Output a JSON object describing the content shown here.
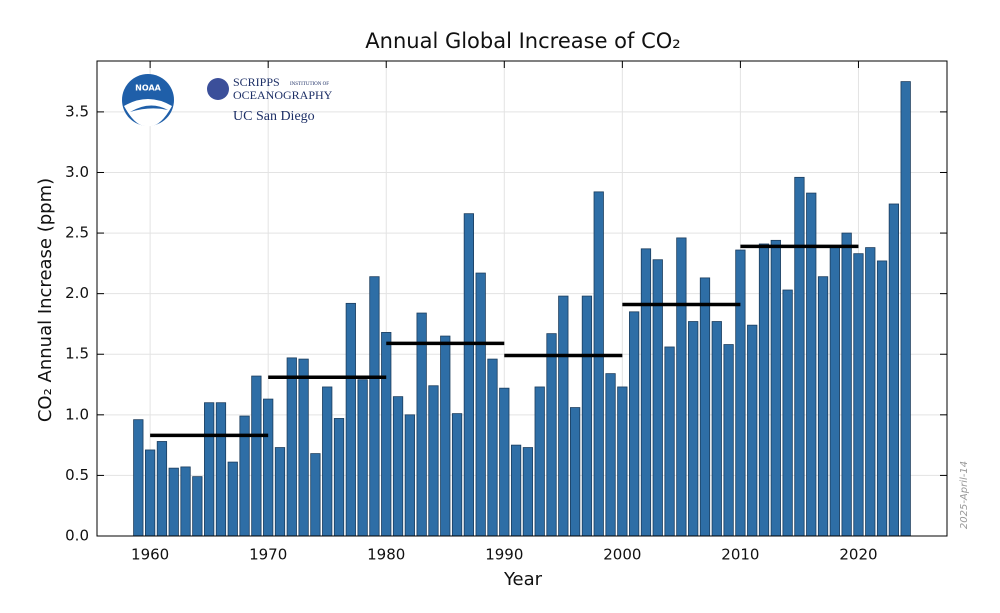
{
  "chart_data": {
    "type": "bar",
    "title": "Annual Global Increase of CO₂",
    "x_label": "Year",
    "y_label": "CO₂ Annual Increase (ppm)",
    "date_stamp": "2025-April-14",
    "logos": {
      "noaa": "NOAA",
      "scripps": "SCRIPPS",
      "scripps_sub": "INSTITUTION OF",
      "oceanography": "OCEANOGRAPHY",
      "ucsd": "UC San Diego"
    },
    "color": "#2e6ea6",
    "x": [
      1959,
      1960,
      1961,
      1962,
      1963,
      1964,
      1965,
      1966,
      1967,
      1968,
      1969,
      1970,
      1971,
      1972,
      1973,
      1974,
      1975,
      1976,
      1977,
      1978,
      1979,
      1980,
      1981,
      1982,
      1983,
      1984,
      1985,
      1986,
      1987,
      1988,
      1989,
      1990,
      1991,
      1992,
      1993,
      1994,
      1995,
      1996,
      1997,
      1998,
      1999,
      2000,
      2001,
      2002,
      2003,
      2004,
      2005,
      2006,
      2007,
      2008,
      2009,
      2010,
      2011,
      2012,
      2013,
      2014,
      2015,
      2016,
      2017,
      2018,
      2019,
      2020,
      2021,
      2022,
      2023,
      2024
    ],
    "values": [
      0.96,
      0.71,
      0.78,
      0.56,
      0.57,
      0.49,
      1.1,
      1.1,
      0.61,
      0.99,
      1.32,
      1.13,
      0.73,
      1.47,
      1.46,
      0.68,
      1.23,
      0.97,
      1.92,
      1.29,
      2.14,
      1.68,
      1.15,
      1.0,
      1.84,
      1.24,
      1.65,
      1.01,
      2.66,
      2.17,
      1.46,
      1.22,
      0.75,
      0.73,
      1.23,
      1.67,
      1.98,
      1.06,
      1.98,
      2.84,
      1.34,
      1.23,
      1.85,
      2.37,
      2.28,
      1.56,
      2.46,
      1.77,
      2.13,
      1.77,
      1.58,
      2.36,
      1.74,
      2.41,
      2.44,
      2.03,
      2.96,
      2.83,
      2.14,
      2.38,
      2.5,
      2.33,
      2.38,
      2.27,
      2.74,
      3.75
    ],
    "decades": {
      "start": [
        1960,
        1970,
        1980,
        1990,
        2000,
        2010
      ],
      "end": [
        1970,
        1980,
        1990,
        2000,
        2010,
        2020
      ],
      "values": [
        0.83,
        1.31,
        1.59,
        1.49,
        1.91,
        2.39
      ],
      "color": "#000000"
    },
    "xlim": [
      1955.5,
      2027.5
    ],
    "ylim": [
      0,
      3.92
    ],
    "xticks": [
      1960,
      1970,
      1980,
      1990,
      2000,
      2010,
      2020
    ],
    "yticks": [
      {
        "value": 0,
        "label": "0.0"
      },
      {
        "value": 0.5,
        "label": "0.5"
      },
      {
        "value": 1,
        "label": "1.0"
      },
      {
        "value": 1.5,
        "label": "1.5"
      },
      {
        "value": 2,
        "label": "2.0"
      },
      {
        "value": 2.5,
        "label": "2.5"
      },
      {
        "value": 3,
        "label": "3.0"
      },
      {
        "value": 3.5,
        "label": "3.5"
      }
    ],
    "grid": true
  }
}
